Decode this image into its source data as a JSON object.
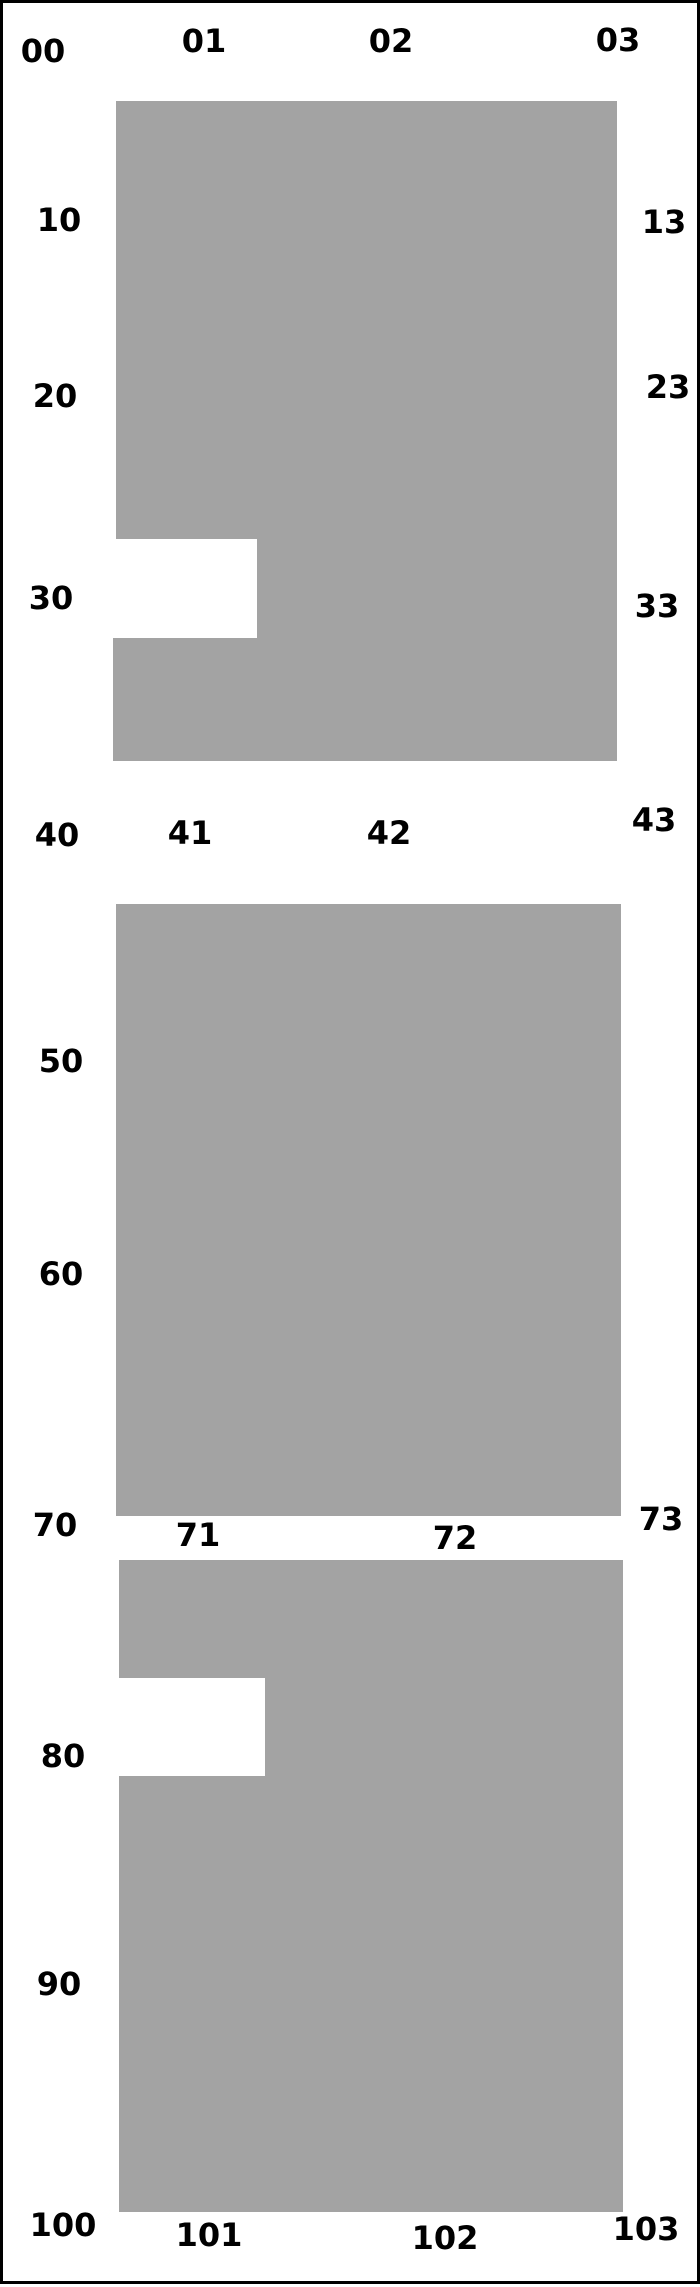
{
  "colors": {
    "shape_fill": "#a3a3a3",
    "background": "#ffffff",
    "border": "#000000",
    "text": "#000000"
  },
  "labels": {
    "l00": "00",
    "l01": "01",
    "l02": "02",
    "l03": "03",
    "l10": "10",
    "l13": "13",
    "l20": "20",
    "l23": "23",
    "l30": "30",
    "l33": "33",
    "l40": "40",
    "l41": "41",
    "l42": "42",
    "l43": "43",
    "l50": "50",
    "l60": "60",
    "l70": "70",
    "l71": "71",
    "l72": "72",
    "l73": "73",
    "l80": "80",
    "l90": "90",
    "l100": "100",
    "l101": "101",
    "l102": "102",
    "l103": "103"
  }
}
